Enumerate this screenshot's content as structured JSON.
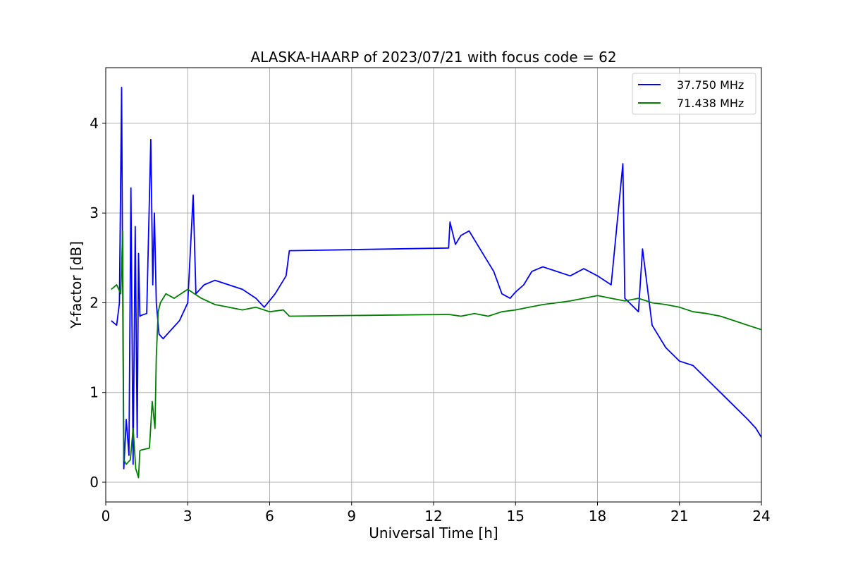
{
  "chart_data": {
    "type": "line",
    "title": "ALASKA-HAARP of 2023/07/21 with focus code = 62",
    "xlabel": "Universal Time [h]",
    "ylabel": "Y-factor [dB]",
    "xlim": [
      0,
      24
    ],
    "ylim": [
      -0.22,
      4.62
    ],
    "xticks": [
      0,
      3,
      6,
      9,
      12,
      15,
      18,
      21,
      24
    ],
    "xtick_labels": [
      "0",
      "3",
      "6",
      "9",
      "12",
      "15",
      "18",
      "21",
      "24"
    ],
    "yticks": [
      0,
      1,
      2,
      3,
      4
    ],
    "ytick_labels": [
      "0",
      "1",
      "2",
      "3",
      "4"
    ],
    "grid": true,
    "legend_position": "top-right",
    "series": [
      {
        "name": "37.750 MHz",
        "color": "#0000ff",
        "x": [
          0.2,
          0.4,
          0.5,
          0.58,
          0.62,
          0.66,
          0.75,
          0.85,
          0.92,
          1.0,
          1.08,
          1.15,
          1.2,
          1.25,
          1.3,
          1.5,
          1.65,
          1.72,
          1.78,
          1.85,
          1.95,
          2.1,
          2.4,
          2.7,
          3.0,
          3.2,
          3.3,
          3.6,
          4.0,
          4.5,
          5.0,
          5.5,
          5.8,
          6.2,
          6.6,
          6.72,
          12.55,
          12.6,
          12.8,
          13.0,
          13.3,
          13.6,
          13.9,
          14.2,
          14.5,
          14.8,
          15.0,
          15.3,
          15.6,
          16.0,
          16.5,
          17.0,
          17.5,
          18.0,
          18.5,
          18.93,
          19.0,
          19.5,
          19.65,
          20.0,
          20.5,
          21.0,
          21.5,
          22.0,
          22.5,
          23.0,
          23.5,
          23.8,
          24.0
        ],
        "y": [
          1.8,
          1.75,
          2.0,
          4.4,
          2.2,
          0.15,
          0.7,
          0.3,
          3.28,
          0.2,
          2.85,
          0.5,
          2.55,
          1.85,
          1.86,
          1.88,
          3.82,
          2.2,
          3.0,
          2.0,
          1.65,
          1.6,
          1.7,
          1.8,
          2.0,
          3.2,
          2.1,
          2.2,
          2.25,
          2.2,
          2.15,
          2.05,
          1.95,
          2.1,
          2.3,
          2.58,
          2.61,
          2.9,
          2.65,
          2.75,
          2.8,
          2.65,
          2.5,
          2.35,
          2.1,
          2.05,
          2.12,
          2.2,
          2.35,
          2.4,
          2.35,
          2.3,
          2.38,
          2.3,
          2.2,
          3.55,
          2.05,
          1.9,
          2.6,
          1.75,
          1.5,
          1.35,
          1.3,
          1.15,
          1.0,
          0.85,
          0.7,
          0.6,
          0.5
        ]
      },
      {
        "name": "71.438 MHz",
        "color": "#008000",
        "x": [
          0.2,
          0.4,
          0.55,
          0.62,
          0.66,
          0.75,
          0.9,
          1.0,
          1.1,
          1.2,
          1.25,
          1.3,
          1.6,
          1.7,
          1.8,
          1.85,
          1.92,
          2.0,
          2.2,
          2.5,
          3.0,
          3.5,
          4.0,
          4.5,
          5.0,
          5.5,
          6.0,
          6.5,
          6.72,
          12.55,
          13.0,
          13.5,
          14.0,
          14.5,
          15.0,
          15.5,
          16.0,
          16.5,
          17.0,
          17.5,
          18.0,
          18.5,
          19.0,
          19.5,
          20.0,
          20.5,
          21.0,
          21.5,
          22.0,
          22.5,
          23.0,
          23.5,
          24.0
        ],
        "y": [
          2.15,
          2.2,
          2.1,
          2.8,
          0.25,
          0.2,
          0.25,
          0.6,
          0.15,
          0.05,
          0.35,
          0.36,
          0.38,
          0.9,
          0.6,
          1.4,
          1.9,
          2.0,
          2.1,
          2.05,
          2.15,
          2.05,
          1.98,
          1.95,
          1.92,
          1.95,
          1.9,
          1.92,
          1.85,
          1.87,
          1.85,
          1.88,
          1.85,
          1.9,
          1.92,
          1.95,
          1.98,
          2.0,
          2.02,
          2.05,
          2.08,
          2.05,
          2.02,
          2.05,
          2.0,
          1.98,
          1.95,
          1.9,
          1.88,
          1.85,
          1.8,
          1.75,
          1.7
        ]
      }
    ]
  }
}
